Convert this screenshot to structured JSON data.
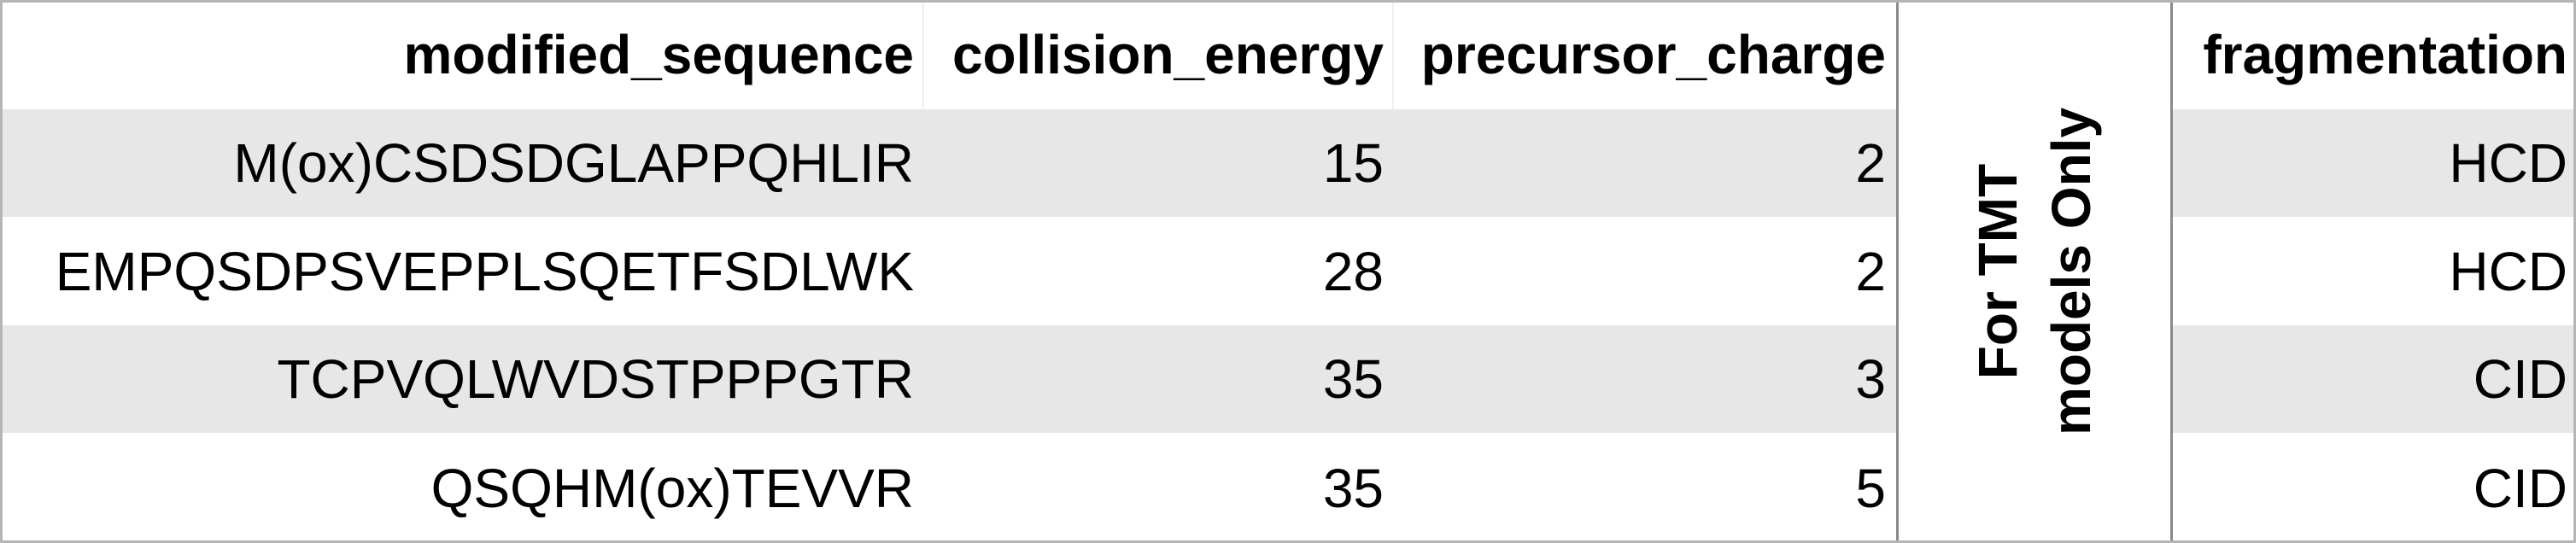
{
  "table": {
    "headers": {
      "modified_sequence": "modified_sequence",
      "collision_energy": "collision_energy",
      "precursor_charge": "precursor_charge",
      "fragmentation": "fragmentation"
    },
    "rows": [
      {
        "modified_sequence": "M(ox)CSDSDGLAPPQHLIR",
        "collision_energy": "15",
        "precursor_charge": "2",
        "fragmentation": "HCD"
      },
      {
        "modified_sequence": "EMPQSDPSVEPPLSQETFSDLWK",
        "collision_energy": "28",
        "precursor_charge": "2",
        "fragmentation": "HCD"
      },
      {
        "modified_sequence": "TCPVQLWVDSTPPPGTR",
        "collision_energy": "35",
        "precursor_charge": "3",
        "fragmentation": "CID"
      },
      {
        "modified_sequence": "QSQHM(ox)TEVVR",
        "collision_energy": "35",
        "precursor_charge": "5",
        "fragmentation": "CID"
      }
    ]
  },
  "note": {
    "line1": "For TMT",
    "line2": "models Only"
  },
  "colors": {
    "band": "#e7e7e7",
    "border": "#8a8a8a",
    "text": "#000000"
  }
}
